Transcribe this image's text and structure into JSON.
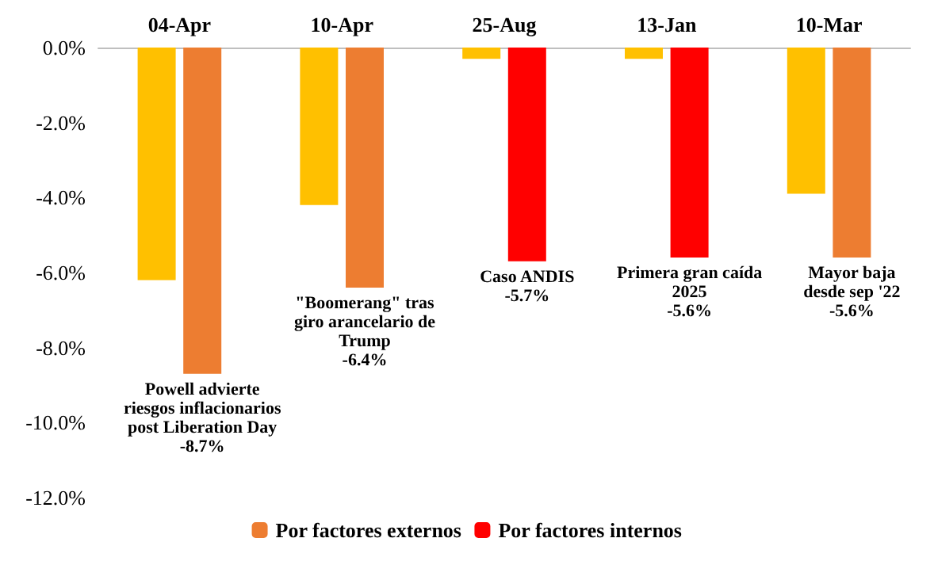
{
  "chart_data": {
    "type": "bar",
    "categories": [
      "04-Apr",
      "10-Apr",
      "25-Aug",
      "13-Jan",
      "10-Mar"
    ],
    "series": [
      {
        "color": "#ffc000",
        "values": [
          -6.2,
          -4.2,
          -0.3,
          -0.3,
          -3.9
        ]
      },
      {
        "name": "Por factores externos",
        "color": "#ed7d31",
        "values": [
          -8.7,
          -6.4,
          null,
          null,
          -5.6
        ]
      },
      {
        "name": "Por factores internos",
        "color": "#ff0000",
        "values": [
          null,
          null,
          -5.7,
          -5.6,
          null
        ]
      }
    ],
    "ylim": [
      -12,
      0
    ],
    "yticks": [
      {
        "value": -12,
        "label": "-12.0%"
      },
      {
        "value": -10,
        "label": "-10.0%"
      },
      {
        "value": -8,
        "label": "-8.0%"
      },
      {
        "value": -6,
        "label": "-6.0%"
      },
      {
        "value": -4,
        "label": "-4.0%"
      },
      {
        "value": -2,
        "label": "-2.0%"
      },
      {
        "value": 0,
        "label": "0.0%"
      }
    ],
    "grid": false,
    "legend": "bottom",
    "annotations": [
      {
        "text": "Powell advierte\nriesgos inflacionarios\npost Liberation Day\n-8.7%",
        "x": "04-Apr",
        "y": -8.7
      },
      {
        "text": "\"Boomerang\" tras\ngiro arancelario de\nTrump\n-6.4%",
        "x": "10-Apr",
        "y": -6.4
      },
      {
        "text": "Caso ANDIS\n-5.7%",
        "x": "25-Aug",
        "y": -5.7
      },
      {
        "text": "Primera gran caída\n2025\n-5.6%",
        "x": "13-Jan",
        "y": -5.6
      },
      {
        "text": "Mayor baja\ndesde sep '22\n-5.6%",
        "x": "10-Mar",
        "y": -5.6
      }
    ]
  }
}
